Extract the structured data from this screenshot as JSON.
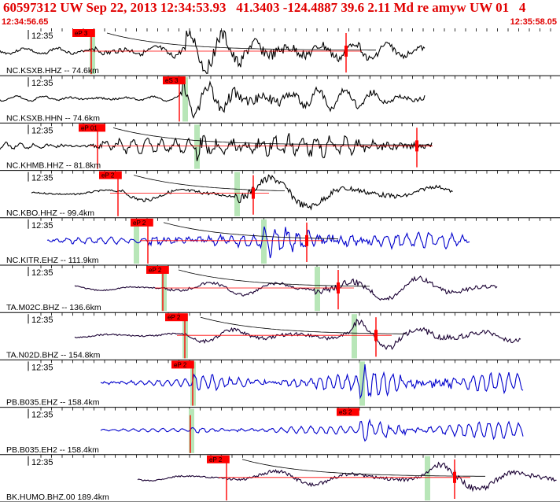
{
  "header": {
    "title": "60597312 UW Sep 22, 2013 12:34:53.93   41.3403 -124.4887 39.6 2.11 Md re amyw UW 01   4",
    "time_start": "12:34:56.65",
    "time_end": "12:35:58.05"
  },
  "tick_label": "12:35",
  "colors": {
    "header": "#e00000",
    "pick": "#ff0000",
    "window": "#b8e6b8",
    "trace_black": "#000000",
    "trace_blue": "#0000cc",
    "trace_navy": "#1a0033"
  },
  "traces": [
    {
      "label": "NC.KSXB.HHZ -- 74.6km",
      "pick": "eP 3",
      "color": "black",
      "coda": true,
      "marker": true
    },
    {
      "label": "NC.KSXB.HHN -- 74.6km",
      "pick": "eS 3",
      "color": "black",
      "coda": false,
      "marker": false
    },
    {
      "label": "NC.KHMB.HHZ -- 81.8km",
      "pick": "eP 01",
      "color": "black",
      "coda": true,
      "marker": true
    },
    {
      "label": "NC.KBO.HHZ -- 99.4km",
      "pick": "eP 2",
      "color": "black",
      "coda": true,
      "marker": true
    },
    {
      "label": "NC.KITR.EHZ -- 111.9km",
      "pick": "eP 2",
      "color": "blue",
      "coda": true,
      "marker": true
    },
    {
      "label": "TA.M02C.BHZ -- 136.6km",
      "pick": "eP 2",
      "color": "navy",
      "coda": true,
      "marker": true
    },
    {
      "label": "TA.N02D.BHZ -- 154.8km",
      "pick": "eP 2",
      "color": "navy",
      "coda": true,
      "marker": true
    },
    {
      "label": "PB.B035.EHZ -- 158.4km",
      "pick": "eP 2",
      "color": "blue",
      "coda": false,
      "marker": false
    },
    {
      "label": "PB.B035.EH2 -- 158.4km",
      "pick": "eS 2",
      "color": "blue",
      "coda": false,
      "marker": false
    },
    {
      "label": "BK.HUMO.BHZ.00 189.4km",
      "pick": "eP 2",
      "color": "navy",
      "coda": true,
      "marker": true
    }
  ]
}
